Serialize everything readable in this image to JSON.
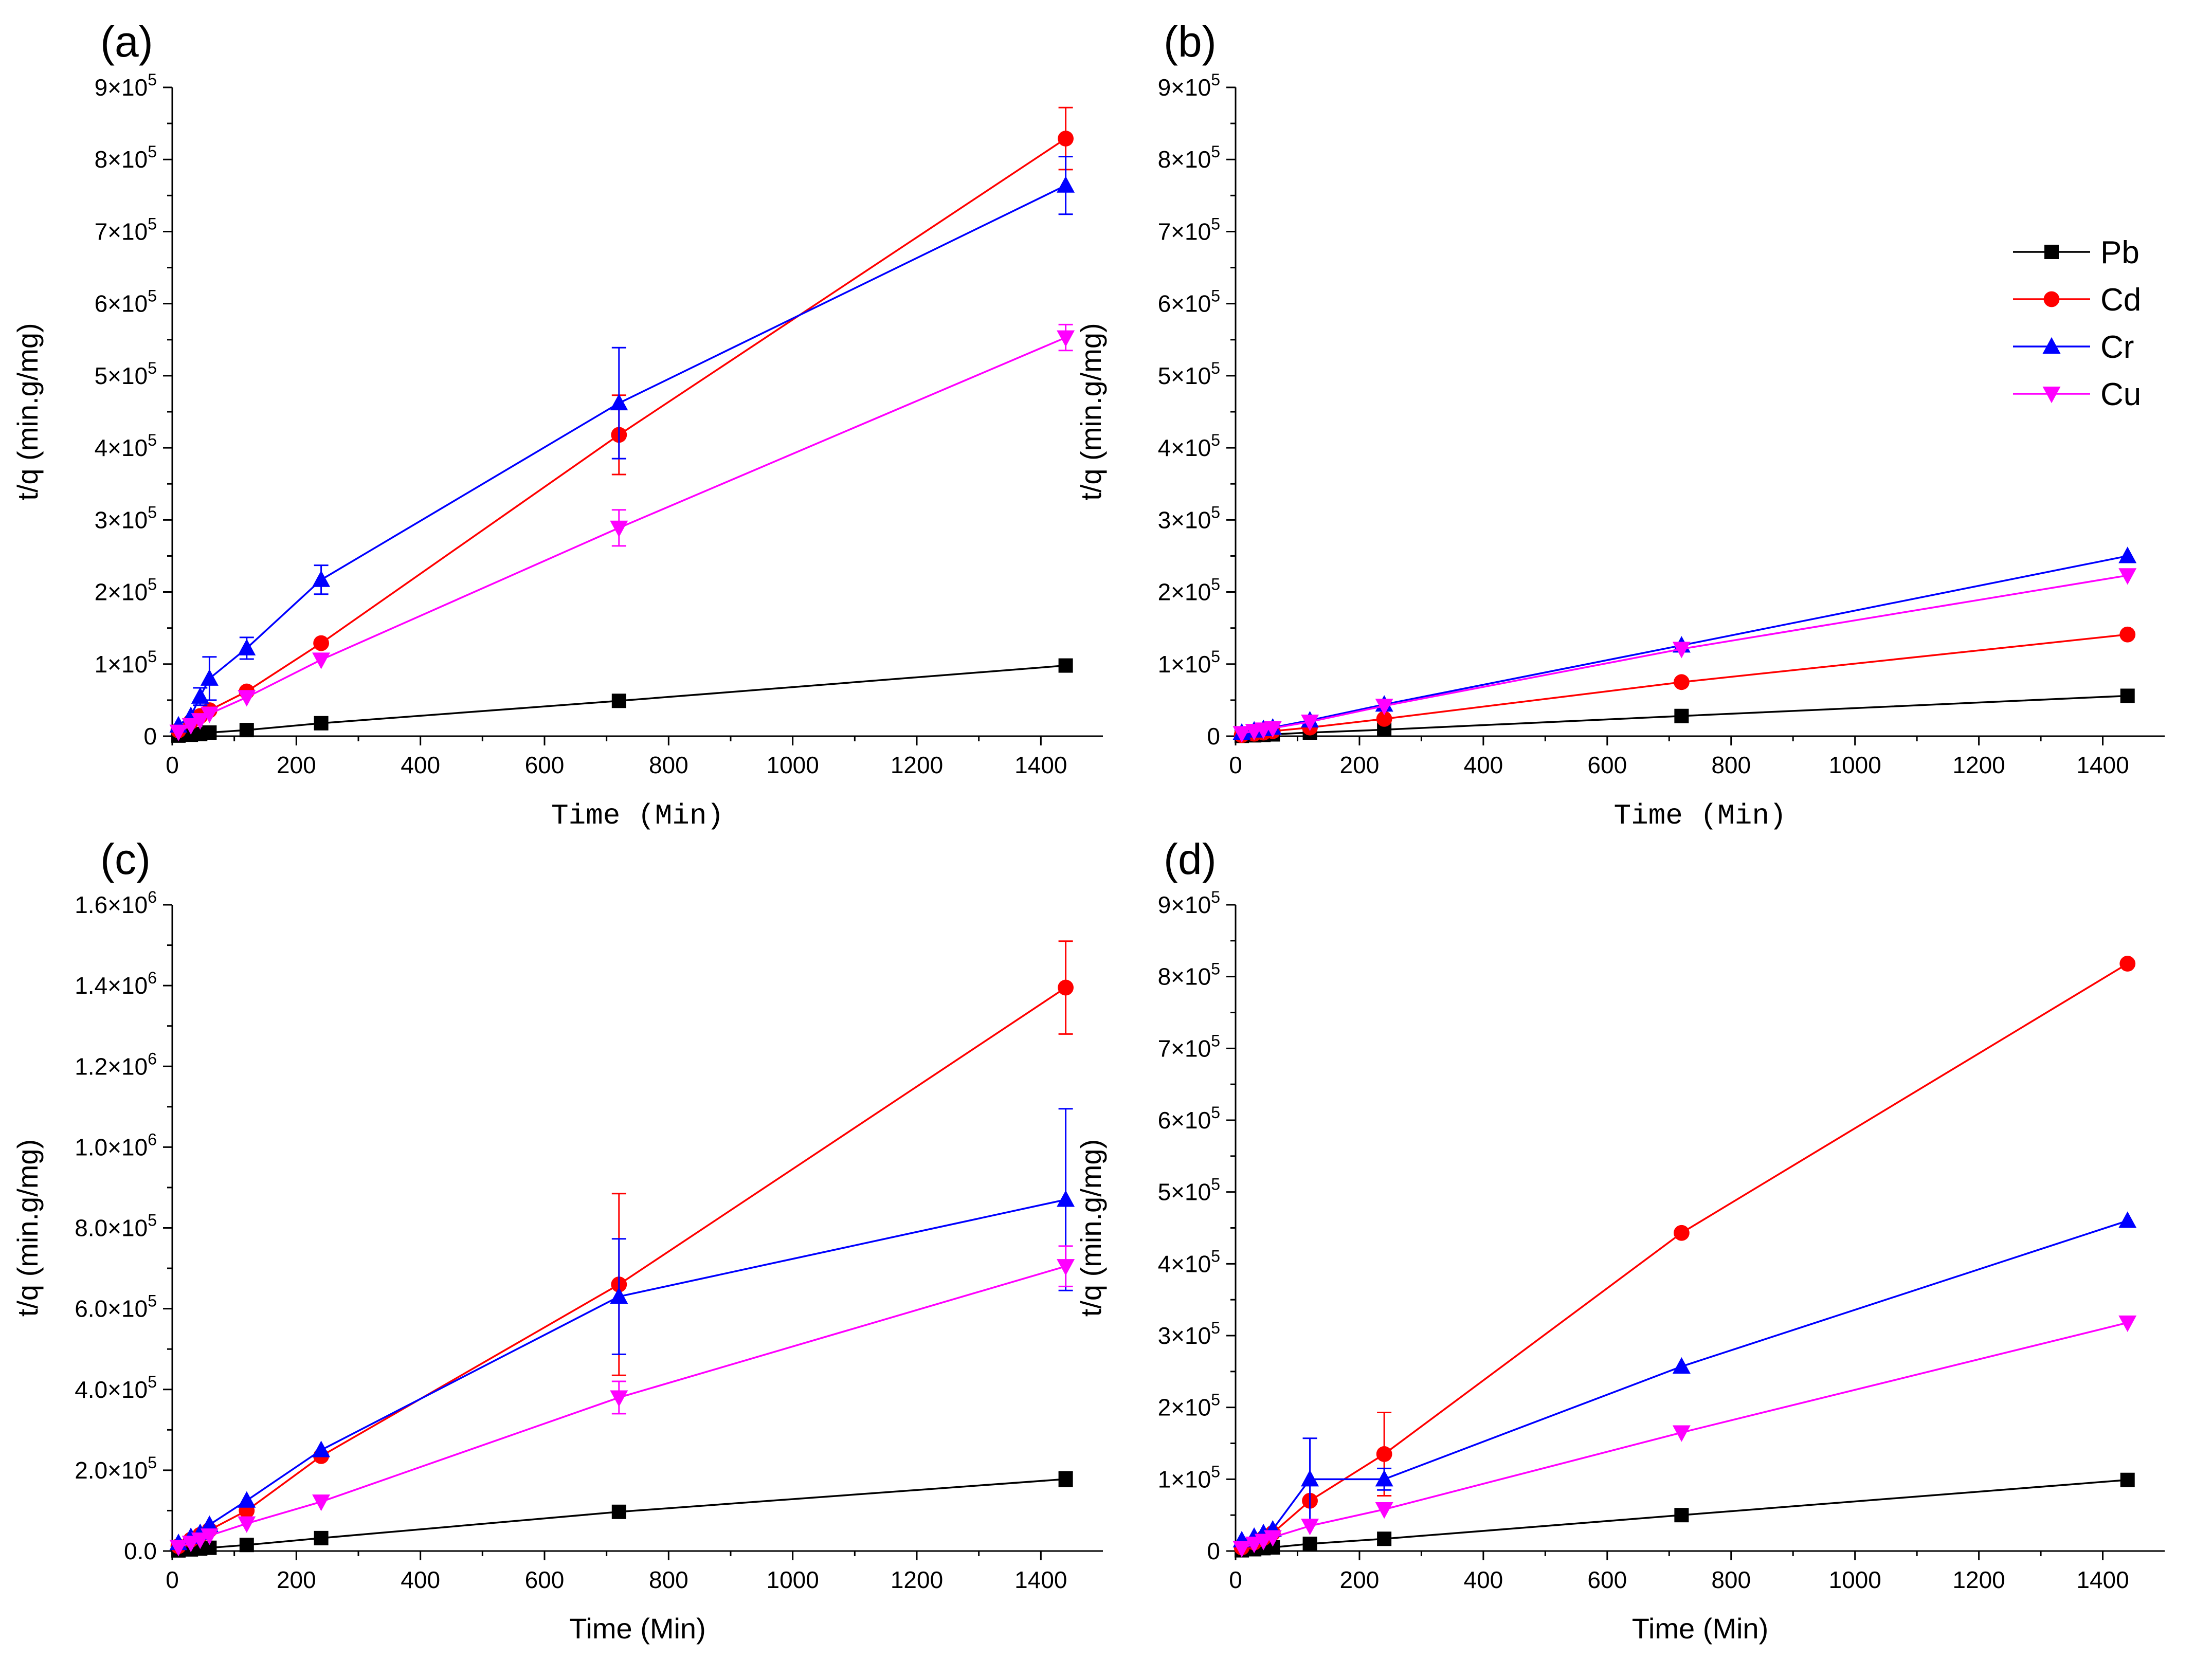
{
  "chart_data": [
    {
      "panel": "(a)",
      "type": "line",
      "xlabel": "Time (Min)",
      "xlabel_font": "mono",
      "ylabel": "t/q (min.g/mg)",
      "xlim": [
        0,
        1500
      ],
      "ylim": [
        0,
        900000
      ],
      "xticks": [
        0,
        200,
        400,
        600,
        800,
        1000,
        1200,
        1400
      ],
      "yticks": [
        {
          "value": 0,
          "mant": "0",
          "exp": ""
        },
        {
          "value": 100000,
          "mant": "1×10",
          "exp": "5"
        },
        {
          "value": 200000,
          "mant": "2×10",
          "exp": "5"
        },
        {
          "value": 300000,
          "mant": "3×10",
          "exp": "5"
        },
        {
          "value": 400000,
          "mant": "4×10",
          "exp": "5"
        },
        {
          "value": 500000,
          "mant": "5×10",
          "exp": "5"
        },
        {
          "value": 600000,
          "mant": "6×10",
          "exp": "5"
        },
        {
          "value": 700000,
          "mant": "7×10",
          "exp": "5"
        },
        {
          "value": 800000,
          "mant": "8×10",
          "exp": "5"
        },
        {
          "value": 900000,
          "mant": "9×10",
          "exp": "5"
        }
      ],
      "x": [
        10,
        30,
        45,
        60,
        120,
        240,
        720,
        1440
      ],
      "series": [
        {
          "name": "Pb",
          "values": [
            800,
            2000,
            3000,
            5000,
            8500,
            18000,
            49000,
            98000
          ],
          "errors": [
            0,
            0,
            0,
            0,
            0,
            0,
            0,
            0
          ]
        },
        {
          "name": "Cd",
          "values": [
            8000,
            20000,
            28000,
            36000,
            62000,
            129000,
            418000,
            829000
          ],
          "errors": [
            0,
            0,
            0,
            0,
            0,
            0,
            55000,
            43000
          ]
        },
        {
          "name": "Cr",
          "values": [
            15000,
            28000,
            55000,
            80000,
            122000,
            217000,
            462000,
            764000
          ],
          "errors": [
            0,
            0,
            12000,
            30000,
            15000,
            20000,
            77000,
            40000
          ]
        },
        {
          "name": "Cu",
          "values": [
            6000,
            15000,
            22000,
            31000,
            54000,
            106000,
            289000,
            553000
          ],
          "errors": [
            0,
            0,
            0,
            0,
            0,
            0,
            25000,
            18000
          ]
        }
      ]
    },
    {
      "panel": "(b)",
      "type": "line",
      "xlabel": "Time (Min)",
      "xlabel_font": "mono",
      "ylabel": "t/q (min.g/mg)",
      "xlim": [
        0,
        1500
      ],
      "ylim": [
        0,
        900000
      ],
      "xticks": [
        0,
        200,
        400,
        600,
        800,
        1000,
        1200,
        1400
      ],
      "yticks": [
        {
          "value": 0,
          "mant": "0",
          "exp": ""
        },
        {
          "value": 100000,
          "mant": "1×10",
          "exp": "5"
        },
        {
          "value": 200000,
          "mant": "2×10",
          "exp": "5"
        },
        {
          "value": 300000,
          "mant": "3×10",
          "exp": "5"
        },
        {
          "value": 400000,
          "mant": "4×10",
          "exp": "5"
        },
        {
          "value": 500000,
          "mant": "5×10",
          "exp": "5"
        },
        {
          "value": 600000,
          "mant": "6×10",
          "exp": "5"
        },
        {
          "value": 700000,
          "mant": "7×10",
          "exp": "5"
        },
        {
          "value": 800000,
          "mant": "8×10",
          "exp": "5"
        },
        {
          "value": 900000,
          "mant": "9×10",
          "exp": "5"
        }
      ],
      "x": [
        10,
        30,
        45,
        60,
        120,
        240,
        720,
        1440
      ],
      "series": [
        {
          "name": "Pb",
          "values": [
            500,
            1200,
            1800,
            2500,
            5000,
            9000,
            28000,
            56000
          ],
          "errors": [
            0,
            0,
            0,
            0,
            0,
            0,
            0,
            0
          ]
        },
        {
          "name": "Cd",
          "values": [
            1500,
            3500,
            5000,
            7000,
            12000,
            24000,
            75000,
            141000
          ],
          "errors": [
            0,
            0,
            0,
            0,
            0,
            0,
            0,
            0
          ]
        },
        {
          "name": "Cr",
          "values": [
            5000,
            8000,
            10000,
            12000,
            22000,
            44000,
            126000,
            250000
          ],
          "errors": [
            0,
            0,
            0,
            0,
            0,
            0,
            0,
            0
          ]
        },
        {
          "name": "Cu",
          "values": [
            4000,
            7000,
            9000,
            11000,
            20000,
            42000,
            121000,
            223000
          ],
          "errors": [
            0,
            0,
            0,
            0,
            0,
            0,
            0,
            0
          ]
        }
      ]
    },
    {
      "panel": "(c)",
      "type": "line",
      "xlabel": "Time (Min)",
      "xlabel_font": "sans",
      "ylabel": "t/q (min.g/mg)",
      "xlim": [
        0,
        1500
      ],
      "ylim": [
        0,
        1600000
      ],
      "xticks": [
        0,
        200,
        400,
        600,
        800,
        1000,
        1200,
        1400
      ],
      "yticks": [
        {
          "value": 0,
          "mant": "0.0",
          "exp": ""
        },
        {
          "value": 200000,
          "mant": "2.0×10",
          "exp": "5"
        },
        {
          "value": 400000,
          "mant": "4.0×10",
          "exp": "5"
        },
        {
          "value": 600000,
          "mant": "6.0×10",
          "exp": "5"
        },
        {
          "value": 800000,
          "mant": "8.0×10",
          "exp": "5"
        },
        {
          "value": 1000000,
          "mant": "1.0×10",
          "exp": "6"
        },
        {
          "value": 1200000,
          "mant": "1.2×10",
          "exp": "6"
        },
        {
          "value": 1400000,
          "mant": "1.4×10",
          "exp": "6"
        },
        {
          "value": 1600000,
          "mant": "1.6×10",
          "exp": "6"
        }
      ],
      "x": [
        10,
        30,
        45,
        60,
        120,
        240,
        720,
        1440
      ],
      "series": [
        {
          "name": "Pb",
          "values": [
            1500,
            4000,
            6000,
            8000,
            15000,
            32000,
            97000,
            178000
          ],
          "errors": [
            0,
            0,
            0,
            0,
            0,
            0,
            0,
            18000
          ]
        },
        {
          "name": "Cd",
          "values": [
            12000,
            28000,
            40000,
            52000,
            100000,
            235000,
            660000,
            1395000
          ],
          "errors": [
            0,
            0,
            0,
            0,
            0,
            0,
            225000,
            115000
          ]
        },
        {
          "name": "Cr",
          "values": [
            20000,
            35000,
            45000,
            65000,
            125000,
            250000,
            630000,
            870000
          ],
          "errors": [
            0,
            0,
            0,
            0,
            0,
            0,
            143000,
            225000
          ]
        },
        {
          "name": "Cu",
          "values": [
            10000,
            20000,
            28000,
            38000,
            68000,
            122000,
            380000,
            705000
          ],
          "errors": [
            0,
            0,
            0,
            0,
            0,
            0,
            40000,
            50000
          ]
        }
      ]
    },
    {
      "panel": "(d)",
      "type": "line",
      "xlabel": "Time (Min)",
      "xlabel_font": "sans",
      "ylabel": "t/q (min.g/mg)",
      "xlim": [
        0,
        1500
      ],
      "ylim": [
        0,
        900000
      ],
      "xticks": [
        0,
        200,
        400,
        600,
        800,
        1000,
        1200,
        1400
      ],
      "yticks": [
        {
          "value": 0,
          "mant": "0",
          "exp": ""
        },
        {
          "value": 100000,
          "mant": "1×10",
          "exp": "5"
        },
        {
          "value": 200000,
          "mant": "2×10",
          "exp": "5"
        },
        {
          "value": 300000,
          "mant": "3×10",
          "exp": "5"
        },
        {
          "value": 400000,
          "mant": "4×10",
          "exp": "5"
        },
        {
          "value": 500000,
          "mant": "5×10",
          "exp": "5"
        },
        {
          "value": 600000,
          "mant": "6×10",
          "exp": "5"
        },
        {
          "value": 700000,
          "mant": "7×10",
          "exp": "5"
        },
        {
          "value": 800000,
          "mant": "8×10",
          "exp": "5"
        },
        {
          "value": 900000,
          "mant": "9×10",
          "exp": "5"
        }
      ],
      "x": [
        10,
        30,
        45,
        60,
        120,
        240,
        720,
        1440
      ],
      "series": [
        {
          "name": "Pb",
          "values": [
            1000,
            2500,
            4000,
            5000,
            10000,
            17000,
            50000,
            99000
          ],
          "errors": [
            0,
            0,
            0,
            0,
            0,
            0,
            0,
            0
          ]
        },
        {
          "name": "Cd",
          "values": [
            5000,
            12000,
            18000,
            25000,
            70000,
            135000,
            443000,
            818000
          ],
          "errors": [
            0,
            0,
            0,
            0,
            0,
            58000,
            0,
            0
          ]
        },
        {
          "name": "Cr",
          "values": [
            15000,
            20000,
            25000,
            30000,
            100000,
            100000,
            257000,
            460000
          ],
          "errors": [
            0,
            0,
            0,
            0,
            57000,
            15000,
            0,
            0
          ]
        },
        {
          "name": "Cu",
          "values": [
            4000,
            10000,
            14000,
            19000,
            35000,
            58000,
            165000,
            318000
          ],
          "errors": [
            0,
            0,
            0,
            0,
            0,
            0,
            0,
            0
          ]
        }
      ]
    }
  ],
  "legend": {
    "entries": [
      "Pb",
      "Cd",
      "Cr",
      "Cu"
    ],
    "placement": "top-right of panel (b)"
  },
  "colors": {
    "Pb": "#000000",
    "Cd": "#ff0000",
    "Cr": "#0000ff",
    "Cu": "#ff00ff"
  },
  "markers": {
    "Pb": "square",
    "Cd": "circle",
    "Cr": "triangle-up",
    "Cu": "triangle-down"
  }
}
